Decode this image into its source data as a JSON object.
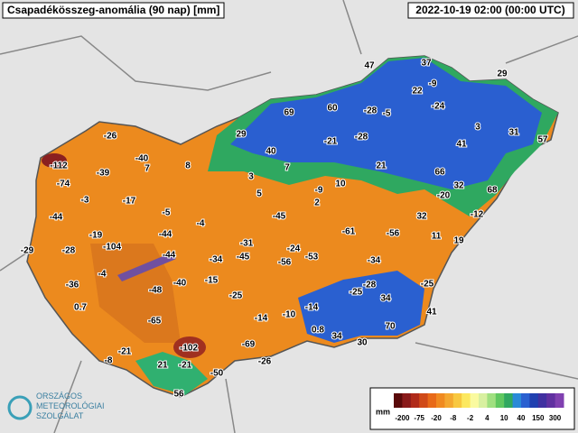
{
  "header": {
    "title": "Csapadékösszeg-anomália (90 nap) [mm]",
    "timestamp": "2022-10-19 02:00 (00:00 UTC)"
  },
  "labels": [
    "47",
    "37",
    "29",
    "-9",
    "22",
    "-28",
    "-5",
    "-24",
    "69",
    "60",
    "3",
    "31",
    "29",
    "-28",
    "-21",
    "57",
    "41",
    "40",
    "7",
    "21",
    "66",
    "-26",
    "-112",
    "-40",
    "8",
    "3",
    "10",
    "32",
    "68",
    "-39",
    "-74",
    "7",
    "-9",
    "-20",
    "5",
    "2",
    "-3",
    "-17",
    "-5",
    "-12",
    "-44",
    "-4",
    "-45",
    "32",
    "-19",
    "-44",
    "-61",
    "-56",
    "11",
    "19",
    "-29",
    "-28",
    "-104",
    "-31",
    "-24",
    "-44",
    "-53",
    "-4",
    "-34",
    "-45",
    "-56",
    "-34",
    "-36",
    "-40",
    "-15",
    "-48",
    "-28",
    "-25",
    "-25",
    "-25",
    "34",
    "0.7",
    "-14",
    "-14",
    "-10",
    "41",
    "-65",
    "70",
    "0.8",
    "34",
    "30",
    "-102",
    "-69",
    "-21",
    "-8",
    "21",
    "-21",
    "-50",
    "-26",
    "56"
  ],
  "legend": {
    "unit": "mm",
    "ticks": [
      "-200",
      "-75",
      "-20",
      "-8",
      "-2",
      "4",
      "10",
      "40",
      "150",
      "300"
    ]
  },
  "logo": {
    "lines": [
      "ORSZÁGOS",
      "METEOROLÓGIAI",
      "SZOLGÁLAT"
    ]
  }
}
